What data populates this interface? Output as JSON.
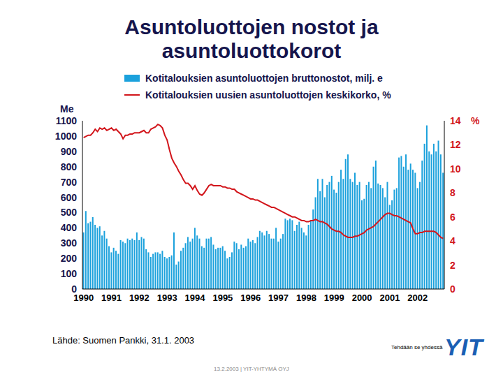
{
  "chart_data": {
    "type": "bar",
    "title": "Asuntoluottojen nostot ja asuntoluottokorot",
    "ylabel": "Me",
    "y2label": "%",
    "annotations": [
      "Lähde: Suomen Pankki, 31.1. 2003",
      "Tehdään se yhdessä",
      "13.2.2003 | YIT-YHTYMÄ OYJ",
      "YIT"
    ],
    "grid": false,
    "categories": [
      "1990",
      null,
      null,
      null,
      null,
      null,
      null,
      null,
      null,
      null,
      null,
      null,
      "1991",
      null,
      null,
      null,
      null,
      null,
      null,
      null,
      null,
      null,
      null,
      null,
      "1992",
      null,
      null,
      null,
      null,
      null,
      null,
      null,
      null,
      null,
      null,
      null,
      "1993",
      null,
      null,
      null,
      null,
      null,
      null,
      null,
      null,
      null,
      null,
      null,
      "1994",
      null,
      null,
      null,
      null,
      null,
      null,
      null,
      null,
      null,
      null,
      null,
      "1995",
      null,
      null,
      null,
      null,
      null,
      null,
      null,
      null,
      null,
      null,
      null,
      "1996",
      null,
      null,
      null,
      null,
      null,
      null,
      null,
      null,
      null,
      null,
      null,
      "1997",
      null,
      null,
      null,
      null,
      null,
      null,
      null,
      null,
      null,
      null,
      null,
      "1998",
      null,
      null,
      null,
      null,
      null,
      null,
      null,
      null,
      null,
      null,
      null,
      "1999",
      null,
      null,
      null,
      null,
      null,
      null,
      null,
      null,
      null,
      null,
      null,
      "2000",
      null,
      null,
      null,
      null,
      null,
      null,
      null,
      null,
      null,
      null,
      null,
      "2001",
      null,
      null,
      null,
      null,
      null,
      null,
      null,
      null,
      null,
      null,
      null,
      "2002",
      null,
      null,
      null,
      null,
      null,
      null,
      null,
      null,
      null,
      null,
      null
    ],
    "series": [
      {
        "name": "Kotitalouksien asuntoluottojen bruttonostot, milj. e",
        "color": "#1ba1dc",
        "type": "bar",
        "values": [
          370,
          510,
          430,
          440,
          470,
          420,
          400,
          410,
          350,
          380,
          330,
          280,
          240,
          270,
          250,
          230,
          320,
          310,
          300,
          330,
          320,
          330,
          320,
          370,
          320,
          340,
          330,
          260,
          240,
          210,
          230,
          240,
          240,
          230,
          250,
          210,
          200,
          210,
          220,
          370,
          160,
          180,
          250,
          270,
          300,
          340,
          310,
          330,
          400,
          350,
          330,
          280,
          270,
          330,
          330,
          340,
          290,
          260,
          270,
          270,
          280,
          250,
          200,
          210,
          240,
          310,
          300,
          260,
          290,
          270,
          280,
          330,
          310,
          320,
          300,
          340,
          380,
          370,
          350,
          380,
          360,
          330,
          330,
          400,
          310,
          330,
          360,
          460,
          450,
          460,
          450,
          380,
          420,
          440,
          400,
          370,
          350,
          420,
          450,
          520,
          600,
          720,
          640,
          720,
          600,
          680,
          700,
          740,
          650,
          630,
          700,
          780,
          720,
          850,
          880,
          720,
          700,
          760,
          680,
          700,
          580,
          590,
          680,
          700,
          660,
          800,
          840,
          690,
          680,
          660,
          600,
          700,
          550,
          580,
          650,
          660,
          860,
          870,
          800,
          880,
          780,
          820,
          780,
          760,
          660,
          700,
          840,
          950,
          1070,
          900,
          880,
          950,
          900,
          970,
          880,
          760
        ]
      },
      {
        "name": "Kotitalouksien uusien asuntoluottojen keskikorko, %",
        "color": "#d2151b",
        "type": "line",
        "axis": "y2",
        "values": [
          12.6,
          12.7,
          12.8,
          12.8,
          13.0,
          13.3,
          13.1,
          13.4,
          13.3,
          13.4,
          13.2,
          13.3,
          13.4,
          13.2,
          13.3,
          13.1,
          12.9,
          12.5,
          12.8,
          12.8,
          12.9,
          12.9,
          13.0,
          13.0,
          13.0,
          13.1,
          13.2,
          13.0,
          13.0,
          13.3,
          13.4,
          13.5,
          13.7,
          13.6,
          13.4,
          12.8,
          12.4,
          11.6,
          10.9,
          10.5,
          10.2,
          9.8,
          9.5,
          9.1,
          8.8,
          8.8,
          8.6,
          8.3,
          8.6,
          8.2,
          7.9,
          7.8,
          8.0,
          8.3,
          8.6,
          8.7,
          8.6,
          8.6,
          8.6,
          8.6,
          8.5,
          8.5,
          8.4,
          8.4,
          8.3,
          8.3,
          8.1,
          8.0,
          7.9,
          7.8,
          7.7,
          7.6,
          7.5,
          7.5,
          7.4,
          7.4,
          7.3,
          7.2,
          7.1,
          7.0,
          6.9,
          6.8,
          6.8,
          6.7,
          6.6,
          6.5,
          6.4,
          6.3,
          6.2,
          6.1,
          6.0,
          6.0,
          5.9,
          5.8,
          5.7,
          5.7,
          5.6,
          5.6,
          5.7,
          5.7,
          5.8,
          5.7,
          5.6,
          5.6,
          5.5,
          5.4,
          5.2,
          5.0,
          4.9,
          4.8,
          4.8,
          4.7,
          4.5,
          4.4,
          4.3,
          4.3,
          4.3,
          4.4,
          4.4,
          4.5,
          4.6,
          4.7,
          4.9,
          5.0,
          5.1,
          5.2,
          5.4,
          5.6,
          5.8,
          6.0,
          6.2,
          6.3,
          6.3,
          6.2,
          6.1,
          6.1,
          6.0,
          5.9,
          5.8,
          5.7,
          5.6,
          5.5,
          5.0,
          4.6,
          4.6,
          4.7,
          4.7,
          4.8,
          4.8,
          4.8,
          4.8,
          4.8,
          4.7,
          4.5,
          4.3,
          4.2
        ]
      }
    ],
    "ylim": [
      0,
      1100
    ],
    "yticks": [
      0,
      100,
      200,
      300,
      400,
      500,
      600,
      700,
      800,
      900,
      1000,
      1100
    ],
    "y2lim": [
      0,
      14
    ],
    "y2ticks": [
      0,
      2,
      4,
      6,
      8,
      10,
      12,
      14
    ]
  }
}
